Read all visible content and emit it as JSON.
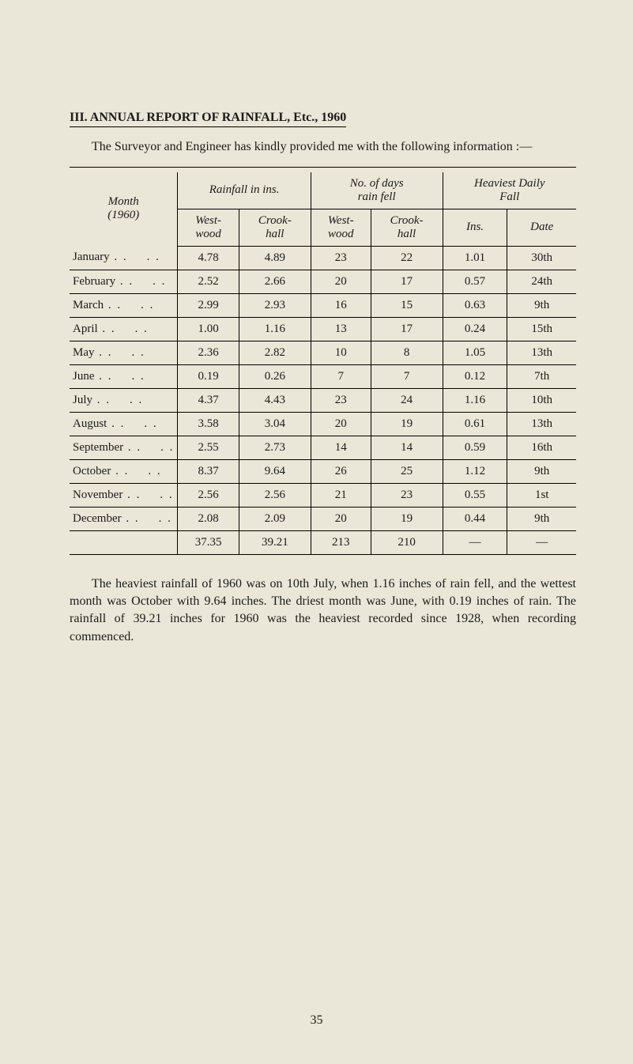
{
  "title": "III.  ANNUAL  REPORT  OF  RAINFALL,  Etc.,  1960",
  "intro": "The Surveyor and Engineer has kindly provided me with the following information :—",
  "table": {
    "month_header_line1": "Month",
    "month_header_line2": "(1960)",
    "group_headers": {
      "rainfall": "Rainfall in ins.",
      "days": "No. of days\nrain fell",
      "heaviest": "Heaviest Daily\nFall"
    },
    "sub_headers": {
      "westwood": "West-\nwood",
      "crookhall": "Crook-\nhall",
      "ins": "Ins.",
      "date": "Date"
    },
    "rows": [
      {
        "month": "January",
        "ww_in": "4.78",
        "ch_in": "4.89",
        "ww_days": "23",
        "ch_days": "22",
        "hf_in": "1.01",
        "hf_date": "30th"
      },
      {
        "month": "February",
        "ww_in": "2.52",
        "ch_in": "2.66",
        "ww_days": "20",
        "ch_days": "17",
        "hf_in": "0.57",
        "hf_date": "24th"
      },
      {
        "month": "March",
        "ww_in": "2.99",
        "ch_in": "2.93",
        "ww_days": "16",
        "ch_days": "15",
        "hf_in": "0.63",
        "hf_date": "9th"
      },
      {
        "month": "April",
        "ww_in": "1.00",
        "ch_in": "1.16",
        "ww_days": "13",
        "ch_days": "17",
        "hf_in": "0.24",
        "hf_date": "15th"
      },
      {
        "month": "May",
        "ww_in": "2.36",
        "ch_in": "2.82",
        "ww_days": "10",
        "ch_days": "8",
        "hf_in": "1.05",
        "hf_date": "13th"
      },
      {
        "month": "June",
        "ww_in": "0.19",
        "ch_in": "0.26",
        "ww_days": "7",
        "ch_days": "7",
        "hf_in": "0.12",
        "hf_date": "7th"
      },
      {
        "month": "July",
        "ww_in": "4.37",
        "ch_in": "4.43",
        "ww_days": "23",
        "ch_days": "24",
        "hf_in": "1.16",
        "hf_date": "10th"
      },
      {
        "month": "August",
        "ww_in": "3.58",
        "ch_in": "3.04",
        "ww_days": "20",
        "ch_days": "19",
        "hf_in": "0.61",
        "hf_date": "13th"
      },
      {
        "month": "September",
        "ww_in": "2.55",
        "ch_in": "2.73",
        "ww_days": "14",
        "ch_days": "14",
        "hf_in": "0.59",
        "hf_date": "16th"
      },
      {
        "month": "October",
        "ww_in": "8.37",
        "ch_in": "9.64",
        "ww_days": "26",
        "ch_days": "25",
        "hf_in": "1.12",
        "hf_date": "9th"
      },
      {
        "month": "November",
        "ww_in": "2.56",
        "ch_in": "2.56",
        "ww_days": "21",
        "ch_days": "23",
        "hf_in": "0.55",
        "hf_date": "1st"
      },
      {
        "month": "December",
        "ww_in": "2.08",
        "ch_in": "2.09",
        "ww_days": "20",
        "ch_days": "19",
        "hf_in": "0.44",
        "hf_date": "9th"
      }
    ],
    "totals": {
      "ww_in": "37.35",
      "ch_in": "39.21",
      "ww_days": "213",
      "ch_days": "210",
      "hf_in": "—",
      "hf_date": "—"
    }
  },
  "body_para": "The heaviest rainfall of 1960 was on 10th July, when 1.16 inches of rain fell, and the wettest month was October with 9.64 inches. The driest month was June, with 0.19 inches of rain. The rainfall of 39.21 inches for 1960 was the heaviest recorded since 1928, when recording commenced.",
  "page_number": "35",
  "styling": {
    "background_color": "#eae7d8",
    "text_color": "#1a1a1a",
    "font_family": "Times New Roman",
    "title_fontsize": 16,
    "body_fontsize": 16,
    "table_fontsize": 15,
    "rule_color": "#000000"
  }
}
